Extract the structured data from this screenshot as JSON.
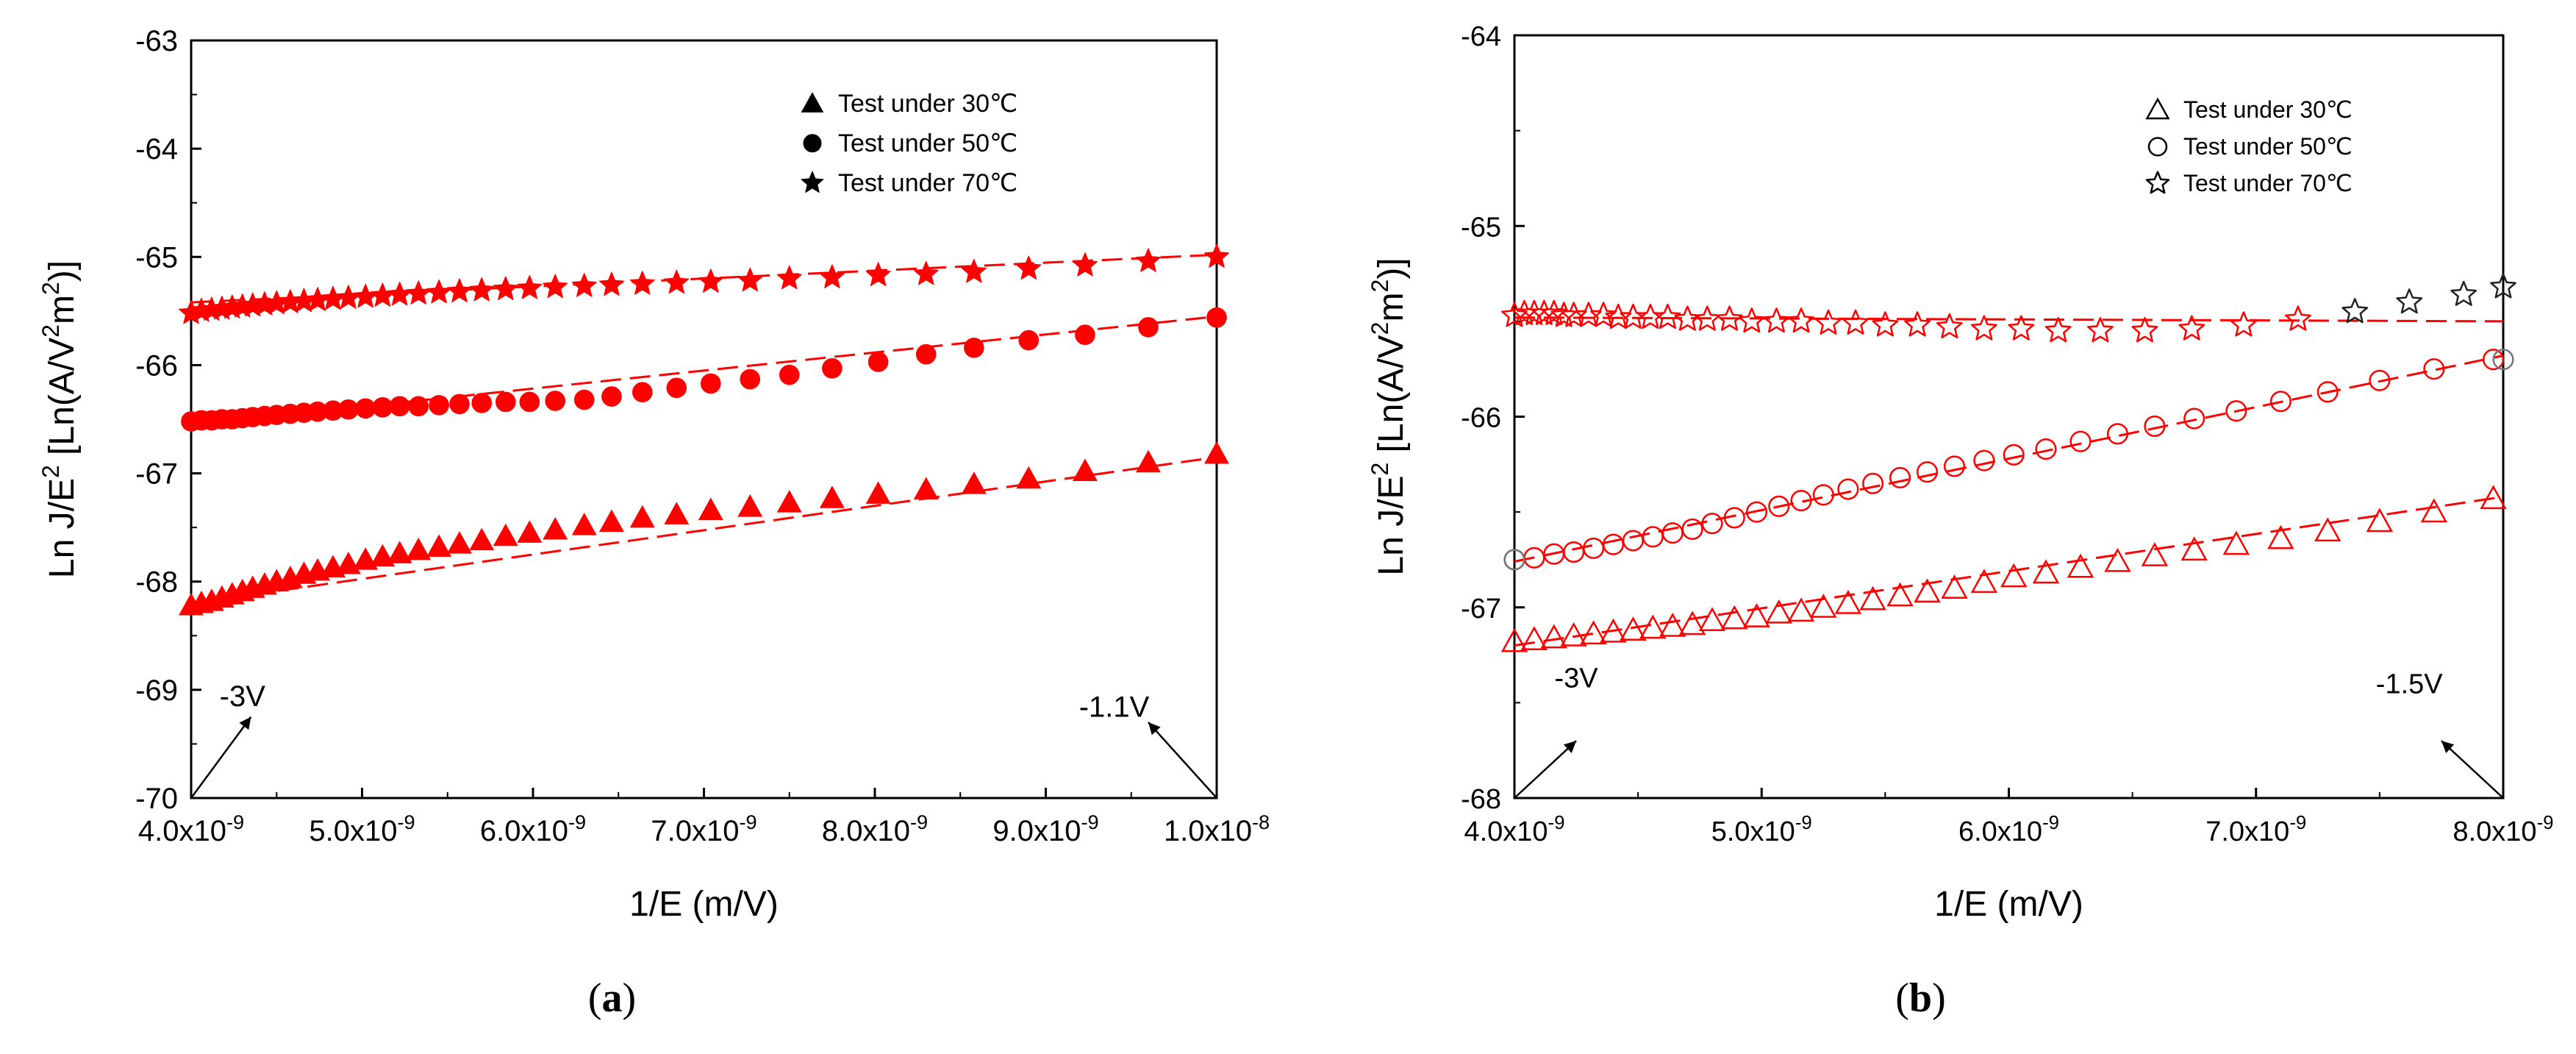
{
  "chart_data": [
    {
      "type": "scatter",
      "panel_label": "(a)",
      "xlabel": "1/E (m/V)",
      "ylabel_main": "Ln J/E",
      "ylabel_sup1": "2",
      "ylabel_mid": " [Ln(A/V",
      "ylabel_sup2": "2",
      "ylabel_mid2": "m",
      "ylabel_sup3": "2",
      "ylabel_end": ")]",
      "xlim": [
        4e-09,
        1e-08
      ],
      "ylim": [
        -70,
        -63
      ],
      "x_ticks": [
        4e-09,
        5e-09,
        6e-09,
        7e-09,
        8e-09,
        9e-09,
        1e-08
      ],
      "x_tick_mantissas": [
        "4.0x10",
        "5.0x10",
        "6.0x10",
        "7.0x10",
        "8.0x10",
        "9.0x10",
        "1.0x10"
      ],
      "x_tick_exps": [
        "-9",
        "-9",
        "-9",
        "-9",
        "-9",
        "-9",
        "-8"
      ],
      "y_ticks": [
        -63,
        -64,
        -65,
        -66,
        -67,
        -68,
        -69,
        -70
      ],
      "y_tick_labels": [
        "-63",
        "-64",
        "-65",
        "-66",
        "-67",
        "-68",
        "-69",
        "-70"
      ],
      "grid": false,
      "legend_position": "top-right",
      "annotations": [
        {
          "text": "-3V",
          "x": 4.3e-09,
          "y": -69.15,
          "arrow_from": [
            4e-09,
            -70
          ],
          "arrow_to": [
            4.35e-09,
            -69.25
          ]
        },
        {
          "text": "-1.1V",
          "x": 9.4e-09,
          "y": -69.25,
          "arrow_from": [
            1e-08,
            -70
          ],
          "arrow_to": [
            9.6e-09,
            -69.3
          ]
        }
      ],
      "series": [
        {
          "name": "Test under 30℃",
          "marker": "triangle",
          "filled": true,
          "color": "#ff0000",
          "x": [
            4e-09,
            4.06e-09,
            4.12e-09,
            4.18e-09,
            4.24e-09,
            4.3e-09,
            4.36e-09,
            4.43e-09,
            4.5e-09,
            4.58e-09,
            4.66e-09,
            4.74e-09,
            4.83e-09,
            4.92e-09,
            5.02e-09,
            5.12e-09,
            5.22e-09,
            5.33e-09,
            5.45e-09,
            5.57e-09,
            5.7e-09,
            5.84e-09,
            5.98e-09,
            6.13e-09,
            6.3e-09,
            6.46e-09,
            6.64e-09,
            6.84e-09,
            7.04e-09,
            7.27e-09,
            7.5e-09,
            7.75e-09,
            8.02e-09,
            8.3e-09,
            8.58e-09,
            8.9e-09,
            9.23e-09,
            9.6e-09,
            1e-08
          ],
          "y": [
            -68.22,
            -68.2,
            -68.18,
            -68.15,
            -68.12,
            -68.09,
            -68.06,
            -68.03,
            -68,
            -67.97,
            -67.93,
            -67.9,
            -67.87,
            -67.84,
            -67.8,
            -67.77,
            -67.74,
            -67.71,
            -67.68,
            -67.65,
            -67.62,
            -67.58,
            -67.55,
            -67.52,
            -67.48,
            -67.45,
            -67.41,
            -67.38,
            -67.34,
            -67.31,
            -67.27,
            -67.23,
            -67.19,
            -67.15,
            -67.1,
            -67.05,
            -66.98,
            -66.9,
            -66.82
          ],
          "fit": [
            [
              4e-09,
              -68.2
            ],
            [
              1e-08,
              -66.85
            ]
          ]
        },
        {
          "name": "Test under 50℃",
          "marker": "circle",
          "filled": true,
          "color": "#ff0000",
          "x": [
            4e-09,
            4.06e-09,
            4.12e-09,
            4.18e-09,
            4.24e-09,
            4.3e-09,
            4.36e-09,
            4.43e-09,
            4.5e-09,
            4.58e-09,
            4.66e-09,
            4.74e-09,
            4.83e-09,
            4.92e-09,
            5.02e-09,
            5.12e-09,
            5.22e-09,
            5.33e-09,
            5.45e-09,
            5.57e-09,
            5.7e-09,
            5.84e-09,
            5.98e-09,
            6.13e-09,
            6.3e-09,
            6.46e-09,
            6.64e-09,
            6.84e-09,
            7.04e-09,
            7.27e-09,
            7.5e-09,
            7.75e-09,
            8.02e-09,
            8.3e-09,
            8.58e-09,
            8.9e-09,
            9.23e-09,
            9.6e-09,
            1e-08
          ],
          "y": [
            -66.52,
            -66.51,
            -66.51,
            -66.5,
            -66.5,
            -66.49,
            -66.48,
            -66.47,
            -66.46,
            -66.45,
            -66.44,
            -66.43,
            -66.42,
            -66.41,
            -66.4,
            -66.39,
            -66.38,
            -66.38,
            -66.37,
            -66.36,
            -66.35,
            -66.34,
            -66.34,
            -66.33,
            -66.32,
            -66.29,
            -66.25,
            -66.21,
            -66.17,
            -66.13,
            -66.09,
            -66.03,
            -65.97,
            -65.9,
            -65.84,
            -65.77,
            -65.72,
            -65.65,
            -65.56
          ],
          "fit": [
            [
              4e-09,
              -66.55
            ],
            [
              1e-08,
              -65.55
            ]
          ]
        },
        {
          "name": "Test under 70℃",
          "marker": "star",
          "filled": true,
          "color": "#ff0000",
          "x": [
            4e-09,
            4.06e-09,
            4.12e-09,
            4.18e-09,
            4.24e-09,
            4.3e-09,
            4.36e-09,
            4.43e-09,
            4.5e-09,
            4.58e-09,
            4.66e-09,
            4.74e-09,
            4.83e-09,
            4.92e-09,
            5.02e-09,
            5.12e-09,
            5.22e-09,
            5.33e-09,
            5.45e-09,
            5.57e-09,
            5.7e-09,
            5.84e-09,
            5.98e-09,
            6.13e-09,
            6.3e-09,
            6.46e-09,
            6.64e-09,
            6.84e-09,
            7.04e-09,
            7.27e-09,
            7.5e-09,
            7.75e-09,
            8.02e-09,
            8.3e-09,
            8.58e-09,
            8.9e-09,
            9.23e-09,
            9.6e-09,
            1e-08
          ],
          "y": [
            -65.52,
            -65.5,
            -65.49,
            -65.48,
            -65.47,
            -65.46,
            -65.45,
            -65.44,
            -65.43,
            -65.42,
            -65.41,
            -65.4,
            -65.39,
            -65.38,
            -65.37,
            -65.36,
            -65.35,
            -65.34,
            -65.33,
            -65.32,
            -65.31,
            -65.3,
            -65.29,
            -65.28,
            -65.27,
            -65.26,
            -65.25,
            -65.24,
            -65.23,
            -65.22,
            -65.2,
            -65.19,
            -65.17,
            -65.16,
            -65.14,
            -65.11,
            -65.08,
            -65.04,
            -65.0
          ],
          "fit": [
            [
              4e-09,
              -65.42
            ],
            [
              1e-08,
              -64.98
            ]
          ]
        }
      ]
    },
    {
      "type": "scatter",
      "panel_label": "(b)",
      "xlabel": "1/E (m/V)",
      "ylabel_main": "Ln J/E",
      "ylabel_sup1": "2",
      "ylabel_mid": " [Ln(A/V",
      "ylabel_sup2": "2",
      "ylabel_mid2": "m",
      "ylabel_sup3": "2",
      "ylabel_end": ")]",
      "xlim": [
        4e-09,
        8e-09
      ],
      "ylim": [
        -68,
        -64
      ],
      "x_ticks": [
        4e-09,
        5e-09,
        6e-09,
        7e-09,
        8e-09
      ],
      "x_tick_mantissas": [
        "4.0x10",
        "5.0x10",
        "6.0x10",
        "7.0x10",
        "8.0x10"
      ],
      "x_tick_exps": [
        "-9",
        "-9",
        "-9",
        "-9",
        "-9"
      ],
      "y_ticks": [
        -64,
        -65,
        -66,
        -67,
        -68
      ],
      "y_tick_labels": [
        "-64",
        "-65",
        "-66",
        "-67",
        "-68"
      ],
      "grid": false,
      "legend_position": "top-right",
      "annotations": [
        {
          "text": "-3V",
          "x": 4.25e-09,
          "y": -67.42,
          "arrow_from": [
            4e-09,
            -68
          ],
          "arrow_to": [
            4.25e-09,
            -67.7
          ]
        },
        {
          "text": "-1.5V",
          "x": 7.62e-09,
          "y": -67.45,
          "arrow_from": [
            8e-09,
            -68
          ],
          "arrow_to": [
            7.75e-09,
            -67.7
          ]
        }
      ],
      "series": [
        {
          "name": "Test under 30℃",
          "marker": "triangle",
          "filled": false,
          "color": "#ff0000",
          "x": [
            4e-09,
            4.08e-09,
            4.16e-09,
            4.24e-09,
            4.32e-09,
            4.4e-09,
            4.48e-09,
            4.56e-09,
            4.64e-09,
            4.72e-09,
            4.8e-09,
            4.89e-09,
            4.98e-09,
            5.07e-09,
            5.16e-09,
            5.25e-09,
            5.35e-09,
            5.45e-09,
            5.56e-09,
            5.67e-09,
            5.78e-09,
            5.9e-09,
            6.02e-09,
            6.15e-09,
            6.29e-09,
            6.44e-09,
            6.59e-09,
            6.75e-09,
            6.92e-09,
            7.1e-09,
            7.29e-09,
            7.5e-09,
            7.72e-09,
            7.96e-09
          ],
          "y": [
            -67.18,
            -67.17,
            -67.16,
            -67.15,
            -67.14,
            -67.13,
            -67.12,
            -67.11,
            -67.1,
            -67.09,
            -67.07,
            -67.06,
            -67.05,
            -67.03,
            -67.02,
            -67,
            -66.98,
            -66.96,
            -66.94,
            -66.92,
            -66.9,
            -66.87,
            -66.84,
            -66.82,
            -66.79,
            -66.76,
            -66.73,
            -66.7,
            -66.67,
            -66.64,
            -66.6,
            -66.55,
            -66.5,
            -66.43
          ],
          "fit": [
            [
              4e-09,
              -67.2
            ],
            [
              8e-09,
              -66.42
            ]
          ]
        },
        {
          "name": "Test under 50℃",
          "marker": "circle",
          "filled": false,
          "color": "#ff0000",
          "x": [
            4e-09,
            4.08e-09,
            4.16e-09,
            4.24e-09,
            4.32e-09,
            4.4e-09,
            4.48e-09,
            4.56e-09,
            4.64e-09,
            4.72e-09,
            4.8e-09,
            4.89e-09,
            4.98e-09,
            5.07e-09,
            5.16e-09,
            5.25e-09,
            5.35e-09,
            5.45e-09,
            5.56e-09,
            5.67e-09,
            5.78e-09,
            5.9e-09,
            6.02e-09,
            6.15e-09,
            6.29e-09,
            6.44e-09,
            6.59e-09,
            6.75e-09,
            6.92e-09,
            7.1e-09,
            7.29e-09,
            7.5e-09,
            7.72e-09,
            7.96e-09
          ],
          "y": [
            -66.75,
            -66.74,
            -66.72,
            -66.71,
            -66.69,
            -66.67,
            -66.65,
            -66.63,
            -66.61,
            -66.59,
            -66.56,
            -66.53,
            -66.5,
            -66.47,
            -66.44,
            -66.41,
            -66.38,
            -66.35,
            -66.32,
            -66.29,
            -66.26,
            -66.23,
            -66.2,
            -66.17,
            -66.13,
            -66.09,
            -66.05,
            -66.01,
            -65.97,
            -65.92,
            -65.87,
            -65.81,
            -65.75,
            -65.7
          ],
          "fit": [
            [
              4e-09,
              -66.76
            ],
            [
              8e-09,
              -65.68
            ]
          ]
        },
        {
          "name": "Test under 70℃",
          "marker": "star",
          "filled": false,
          "color": "#ff0000",
          "x": [
            4e-09,
            4.04e-09,
            4.08e-09,
            4.12e-09,
            4.16e-09,
            4.2e-09,
            4.24e-09,
            4.3e-09,
            4.36e-09,
            4.42e-09,
            4.48e-09,
            4.55e-09,
            4.62e-09,
            4.7e-09,
            4.78e-09,
            4.87e-09,
            4.96e-09,
            5.06e-09,
            5.16e-09,
            5.27e-09,
            5.38e-09,
            5.5e-09,
            5.63e-09,
            5.76e-09,
            5.9e-09,
            6.05e-09,
            6.2e-09,
            6.37e-09,
            6.55e-09,
            6.74e-09,
            6.95e-09,
            7.17e-09
          ],
          "y": [
            -65.47,
            -65.46,
            -65.46,
            -65.46,
            -65.46,
            -65.47,
            -65.47,
            -65.47,
            -65.47,
            -65.48,
            -65.48,
            -65.48,
            -65.48,
            -65.49,
            -65.49,
            -65.49,
            -65.5,
            -65.5,
            -65.5,
            -65.51,
            -65.51,
            -65.52,
            -65.52,
            -65.53,
            -65.54,
            -65.54,
            -65.55,
            -65.55,
            -65.55,
            -65.54,
            -65.52,
            -65.49
          ],
          "fit": [
            [
              4e-09,
              -65.48
            ],
            [
              8e-09,
              -65.5
            ]
          ]
        },
        {
          "name": "",
          "marker": "star",
          "filled": false,
          "color": "#222222",
          "x": [
            7.4e-09,
            7.62e-09,
            7.84e-09,
            8e-09
          ],
          "y": [
            -65.45,
            -65.4,
            -65.36,
            -65.32
          ]
        },
        {
          "name": "",
          "marker": "circle",
          "filled": false,
          "color": "#777777",
          "x": [
            8e-09
          ],
          "y": [
            -65.7
          ]
        },
        {
          "name": "",
          "marker": "circle",
          "filled": false,
          "color": "#777777",
          "x": [
            4e-09
          ],
          "y": [
            -66.75
          ]
        }
      ]
    }
  ]
}
